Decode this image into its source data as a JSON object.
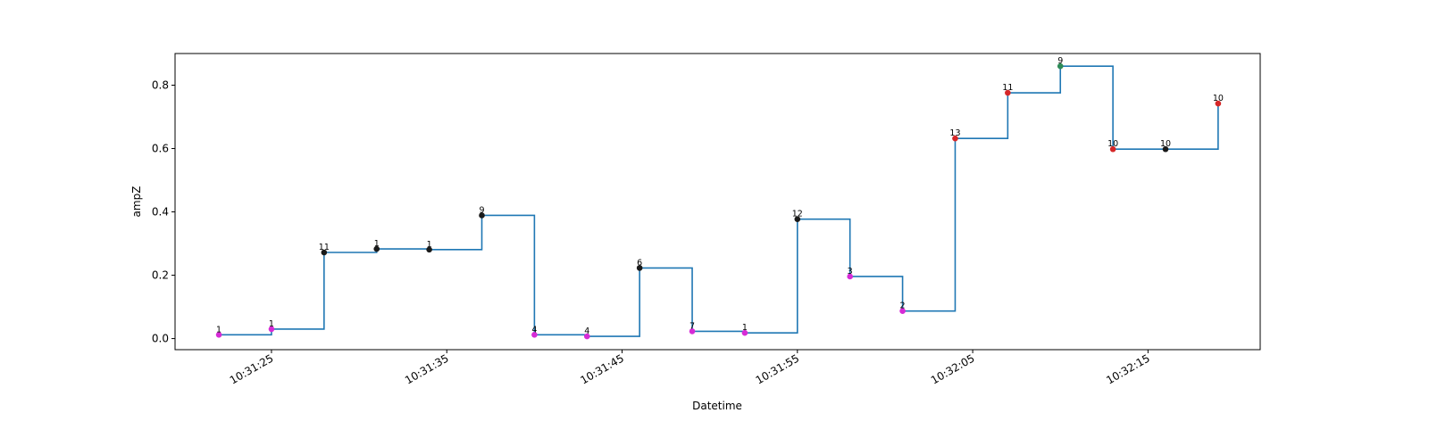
{
  "chart_data": {
    "type": "line",
    "drawstyle": "steps-post",
    "title": "",
    "xlabel": "Datetime",
    "ylabel": "ampZ",
    "line_color": "#1f77b4",
    "xlim": [
      "10:31:19.5",
      "10:32:21.4"
    ],
    "ylim": [
      -0.035,
      0.9
    ],
    "yticks": [
      {
        "value": 0.0,
        "label": "0.0"
      },
      {
        "value": 0.2,
        "label": "0.2"
      },
      {
        "value": 0.4,
        "label": "0.4"
      },
      {
        "value": 0.6,
        "label": "0.6"
      },
      {
        "value": 0.8,
        "label": "0.8"
      }
    ],
    "xticks": [
      {
        "value": "10:31:25",
        "label": "10:31:25"
      },
      {
        "value": "10:31:35",
        "label": "10:31:35"
      },
      {
        "value": "10:31:45",
        "label": "10:31:45"
      },
      {
        "value": "10:31:55",
        "label": "10:31:55"
      },
      {
        "value": "10:32:05",
        "label": "10:32:05"
      },
      {
        "value": "10:32:15",
        "label": "10:32:15"
      }
    ],
    "points": [
      {
        "x": "10:31:22",
        "y": 0.012,
        "label": "1",
        "color": "#d62bd6"
      },
      {
        "x": "10:31:25",
        "y": 0.03,
        "label": "1",
        "color": "#d62bd6"
      },
      {
        "x": "10:31:28",
        "y": 0.272,
        "label": "11",
        "color": "#1a1a1a"
      },
      {
        "x": "10:31:31",
        "y": 0.283,
        "label": "1",
        "color": "#1a1a1a"
      },
      {
        "x": "10:31:34",
        "y": 0.281,
        "label": "1",
        "color": "#1a1a1a"
      },
      {
        "x": "10:31:37",
        "y": 0.389,
        "label": "9",
        "color": "#1a1a1a"
      },
      {
        "x": "10:31:40",
        "y": 0.012,
        "label": "4",
        "color": "#d62bd6"
      },
      {
        "x": "10:31:43",
        "y": 0.007,
        "label": "4",
        "color": "#d62bd6"
      },
      {
        "x": "10:31:46",
        "y": 0.223,
        "label": "6",
        "color": "#1a1a1a"
      },
      {
        "x": "10:31:49",
        "y": 0.023,
        "label": "7",
        "color": "#d62bd6"
      },
      {
        "x": "10:31:52",
        "y": 0.018,
        "label": "1",
        "color": "#d62bd6"
      },
      {
        "x": "10:31:55",
        "y": 0.377,
        "label": "12",
        "color": "#1a1a1a"
      },
      {
        "x": "10:31:58",
        "y": 0.196,
        "label": "3",
        "color": "#d62bd6"
      },
      {
        "x": "10:32:01",
        "y": 0.087,
        "label": "2",
        "color": "#d62bd6"
      },
      {
        "x": "10:32:04",
        "y": 0.632,
        "label": "13",
        "color": "#d62728"
      },
      {
        "x": "10:32:07",
        "y": 0.776,
        "label": "11",
        "color": "#d62728"
      },
      {
        "x": "10:32:10",
        "y": 0.86,
        "label": "9",
        "color": "#2e8b57"
      },
      {
        "x": "10:32:13",
        "y": 0.598,
        "label": "10",
        "color": "#d62728"
      },
      {
        "x": "10:32:16",
        "y": 0.598,
        "label": "10",
        "color": "#1a1a1a"
      },
      {
        "x": "10:32:19",
        "y": 0.742,
        "label": "10",
        "color": "#d62728"
      }
    ]
  }
}
